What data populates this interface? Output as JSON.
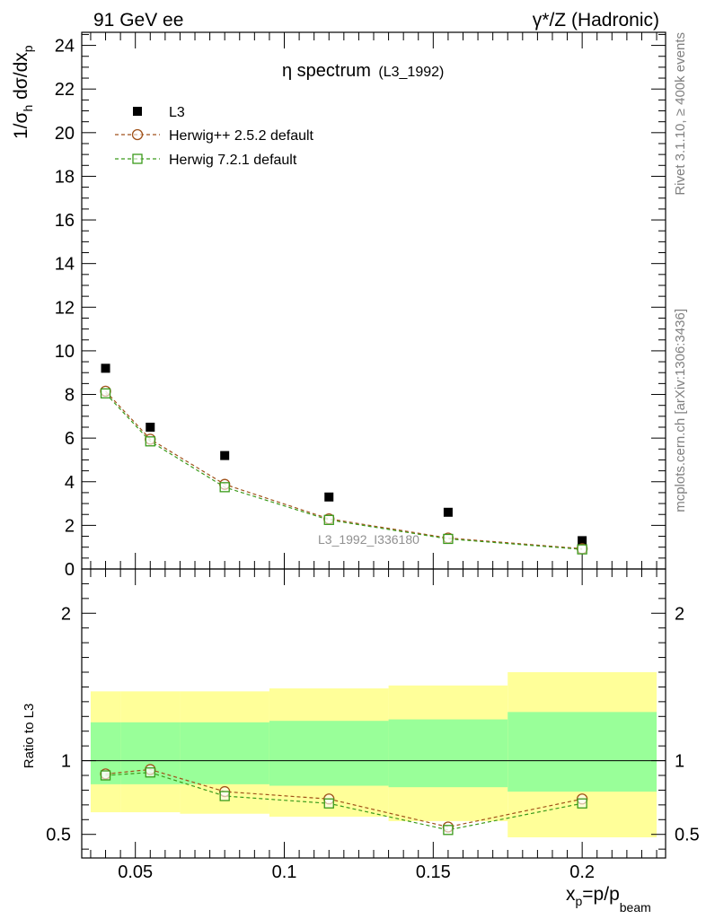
{
  "header": {
    "left": "91 GeV ee",
    "right": "γ*/Z (Hadronic)"
  },
  "side_labels": {
    "top": "Rivet 3.1.10, ≥ 400k events",
    "bottom": "mcplots.cern.ch [arXiv:1306:3436]"
  },
  "colors": {
    "data": "#000000",
    "herwig_pp": "#a0521a",
    "herwig_7": "#3a9a1a",
    "band_inner": "#99ff99",
    "band_outer": "#ffff99"
  },
  "chart_data": [
    {
      "type": "scatter",
      "panel": "main",
      "title": "η spectrum",
      "title_tag": "(L3_1992)",
      "ylabel_parts": [
        "1/σ",
        "h",
        " dσ/dx",
        "p"
      ],
      "xlim": [
        0.032,
        0.228
      ],
      "ylim": [
        0,
        24.6
      ],
      "yticks": [
        0,
        2,
        4,
        6,
        8,
        10,
        12,
        14,
        16,
        18,
        20,
        22,
        24
      ],
      "watermark": "L3_1992_I336180",
      "legend_position": "top-left",
      "x": [
        0.04,
        0.055,
        0.08,
        0.115,
        0.155,
        0.2
      ],
      "series": [
        {
          "name": "L3",
          "style": "square-filled",
          "values": [
            9.2,
            6.5,
            5.2,
            3.3,
            2.6,
            1.3
          ]
        },
        {
          "name": "Herwig++ 2.5.2 default",
          "style": "circle-open-dashed",
          "values": [
            8.15,
            5.95,
            3.88,
            2.3,
            1.42,
            0.93
          ]
        },
        {
          "name": "Herwig 7.2.1 default",
          "style": "square-open-dashed",
          "values": [
            8.05,
            5.85,
            3.75,
            2.25,
            1.38,
            0.9
          ]
        }
      ]
    },
    {
      "type": "line",
      "panel": "ratio",
      "ylabel": "Ratio to L3",
      "xlabel_parts": [
        "x",
        "p",
        "=p/p",
        "beam"
      ],
      "xlim": [
        0.032,
        0.228
      ],
      "ylim": [
        0.34,
        2.3
      ],
      "xticks": [
        {
          "value": 0.05,
          "label": "0.05"
        },
        {
          "value": 0.1,
          "label": "0.1"
        },
        {
          "value": 0.15,
          "label": "0.15"
        },
        {
          "value": 0.2,
          "label": "0.2"
        }
      ],
      "yticks": [
        {
          "value": 0.5,
          "label": "0.5"
        },
        {
          "value": 1,
          "label": "1"
        },
        {
          "value": 2,
          "label": "2"
        }
      ],
      "reference_line": 1,
      "bands": [
        {
          "x0": 0.035,
          "x1": 0.045,
          "inner": [
            0.84,
            1.26
          ],
          "outer": [
            0.65,
            1.47
          ]
        },
        {
          "x0": 0.045,
          "x1": 0.065,
          "inner": [
            0.84,
            1.26
          ],
          "outer": [
            0.65,
            1.47
          ]
        },
        {
          "x0": 0.065,
          "x1": 0.095,
          "inner": [
            0.84,
            1.26
          ],
          "outer": [
            0.64,
            1.47
          ]
        },
        {
          "x0": 0.095,
          "x1": 0.135,
          "inner": [
            0.83,
            1.27
          ],
          "outer": [
            0.62,
            1.49
          ]
        },
        {
          "x0": 0.135,
          "x1": 0.175,
          "inner": [
            0.82,
            1.28
          ],
          "outer": [
            0.59,
            1.51
          ]
        },
        {
          "x0": 0.175,
          "x1": 0.225,
          "inner": [
            0.79,
            1.33
          ],
          "outer": [
            0.48,
            1.6
          ]
        }
      ],
      "x": [
        0.04,
        0.055,
        0.08,
        0.115,
        0.155,
        0.2
      ],
      "series": [
        {
          "name": "Herwig++ 2.5.2 default",
          "style": "circle-open-dashed",
          "values": [
            0.91,
            0.94,
            0.79,
            0.74,
            0.55,
            0.74
          ]
        },
        {
          "name": "Herwig 7.2.1 default",
          "style": "square-open-dashed",
          "values": [
            0.9,
            0.92,
            0.76,
            0.71,
            0.53,
            0.71
          ]
        }
      ]
    }
  ]
}
